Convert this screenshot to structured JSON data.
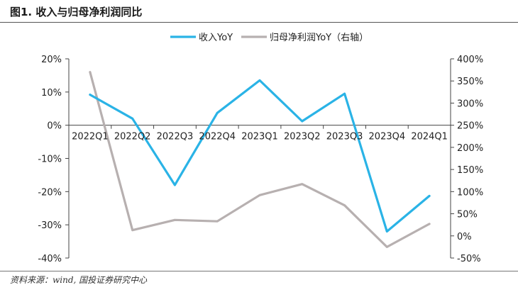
{
  "figure_title": "图1. 收入与归母净利润同比",
  "source": "资料来源：wind, 国投证券研究中心",
  "chart_data": {
    "type": "line",
    "categories": [
      "2022Q1",
      "2022Q2",
      "2022Q3",
      "2022Q4",
      "2023Q1",
      "2023Q2",
      "2023Q3",
      "2023Q4",
      "2024Q1"
    ],
    "series": [
      {
        "name": "收入YoY",
        "axis": "left",
        "color": "#2ab3e6",
        "values": [
          9.2,
          2.0,
          -18.0,
          3.7,
          13.5,
          1.2,
          9.5,
          -32.0,
          -21.3
        ]
      },
      {
        "name": "归母净利润YoY（右轴）",
        "axis": "right",
        "color": "#b7b0b0",
        "values": [
          370,
          13,
          36,
          33,
          92,
          117,
          69,
          -25,
          27
        ]
      }
    ],
    "y_left": {
      "ylim": [
        -40,
        20
      ],
      "ticks": [
        20,
        10,
        0,
        -10,
        -20,
        -30,
        -40
      ],
      "tick_labels": [
        "20%",
        "10%",
        "0%",
        "-10%",
        "-20%",
        "-30%",
        "-40%"
      ]
    },
    "y_right": {
      "ylim": [
        -50,
        400
      ],
      "ticks": [
        400,
        350,
        300,
        250,
        200,
        150,
        100,
        50,
        0,
        -50
      ],
      "tick_labels": [
        "400%",
        "350%",
        "300%",
        "250%",
        "200%",
        "150%",
        "100%",
        "50%",
        "0%",
        "-50%"
      ]
    },
    "grid": false,
    "legend_position": "top-center",
    "category_labels_at": "zero-line"
  }
}
